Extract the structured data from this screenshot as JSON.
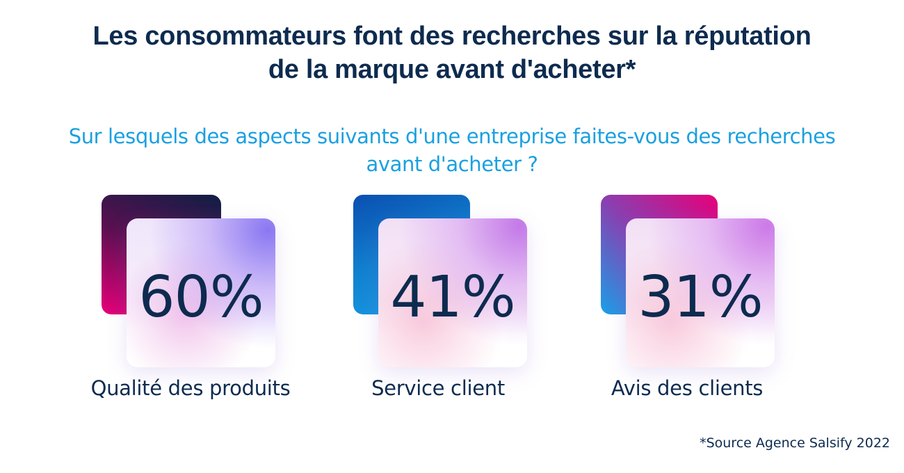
{
  "title": {
    "line1": "Les consommateurs font des recherches sur la réputation",
    "line2": "de la marque avant d'acheter*"
  },
  "subtitle": {
    "line1": "Sur lesquels des aspects suivants d'une entreprise faites-vous des recherches",
    "line2": "avant d'acheter ?"
  },
  "stats": [
    {
      "value": "60%",
      "label": "Qualité des produits"
    },
    {
      "value": "41%",
      "label": "Service client"
    },
    {
      "value": "31%",
      "label": "Avis des clients"
    }
  ],
  "source": "*Source Agence Salsify 2022",
  "colors": {
    "text": "#0d2b4f",
    "subtitle": "#1aa0e0",
    "card1_back": [
      "#0f1f45",
      "#e8007a"
    ],
    "card2_back": [
      "#0a4fb0",
      "#1aa0e8"
    ],
    "card3_back": [
      "#e8007a",
      "#1aa0e8"
    ]
  }
}
